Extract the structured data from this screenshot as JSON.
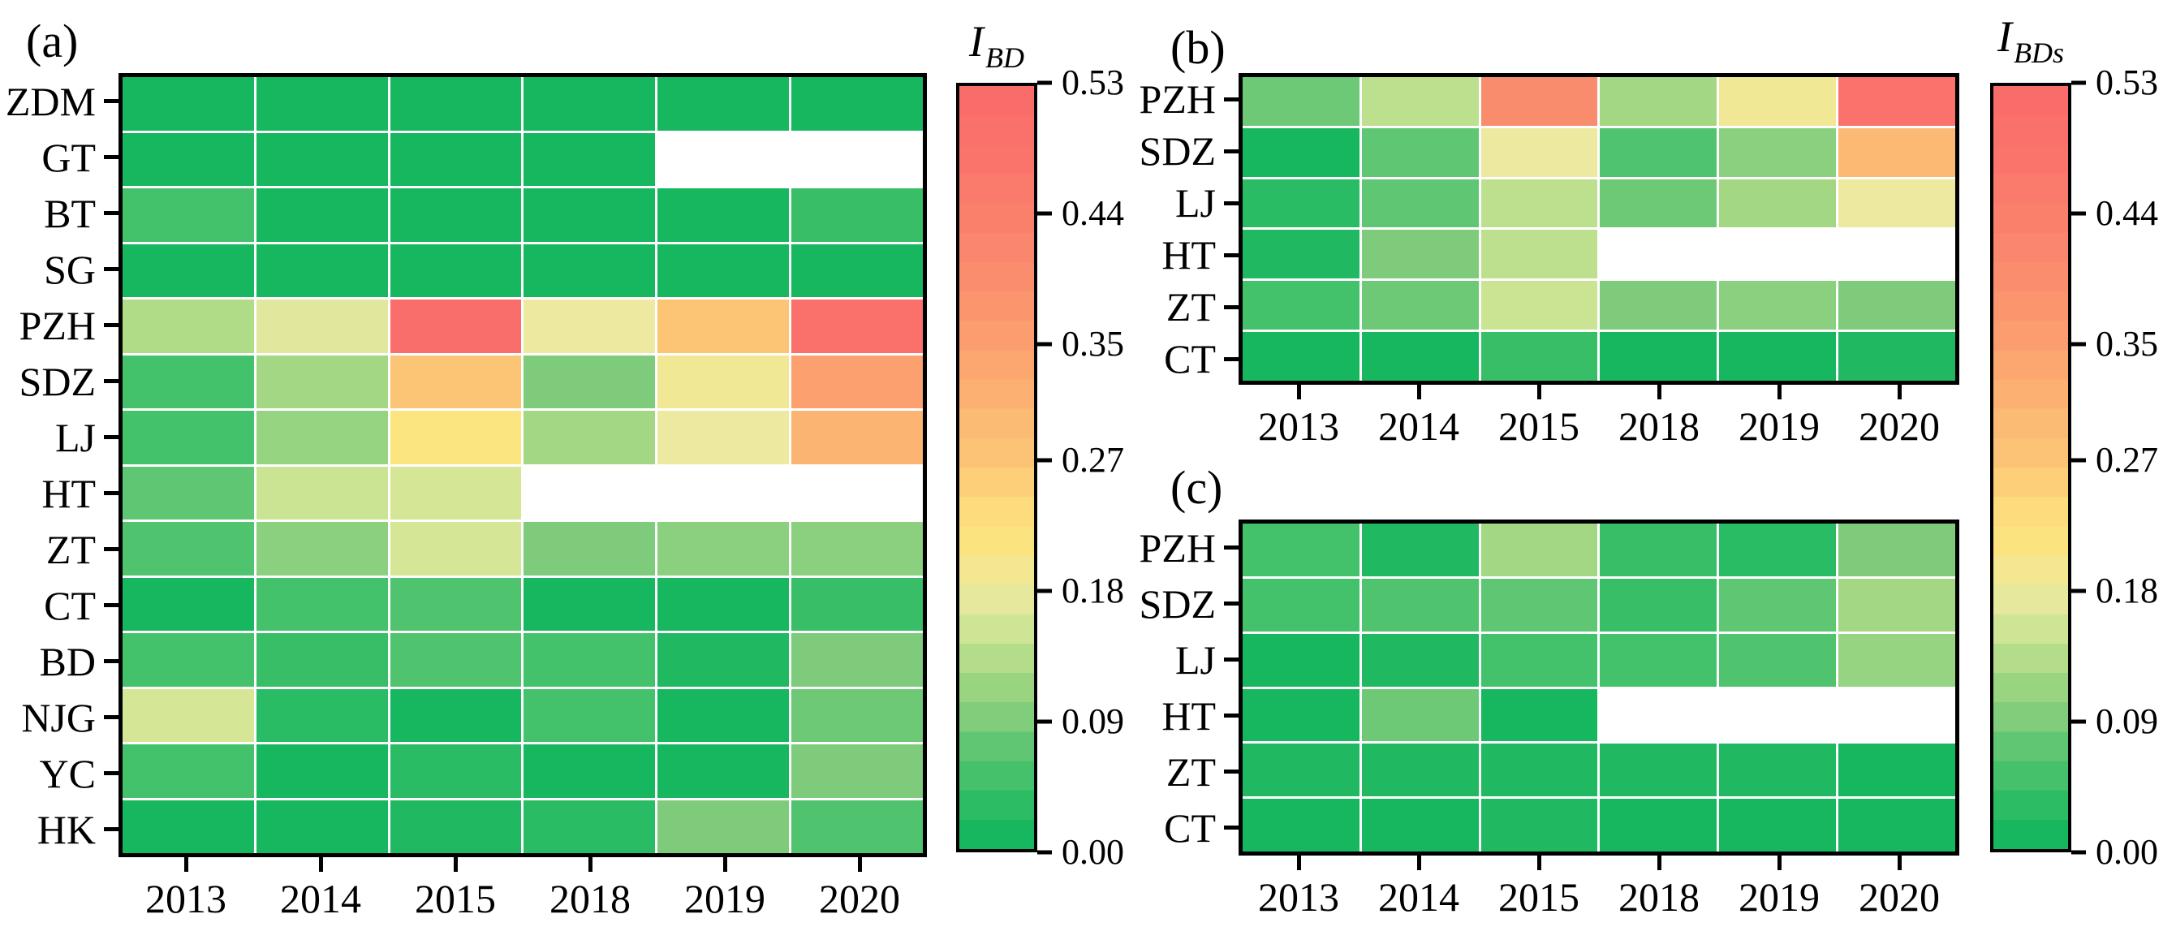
{
  "chart_data": [
    {
      "type": "heatmap",
      "panel_label": "(a)",
      "x": [
        "2013",
        "2014",
        "2015",
        "2018",
        "2019",
        "2020"
      ],
      "y": [
        "ZDM",
        "GT",
        "BT",
        "SG",
        "PZH",
        "SDZ",
        "LJ",
        "HT",
        "ZT",
        "CT",
        "BD",
        "NJG",
        "YC",
        "HK"
      ],
      "values": [
        [
          0.01,
          0.01,
          0.01,
          0.01,
          0.01,
          0.01
        ],
        [
          0.01,
          0.01,
          0.01,
          0.01,
          null,
          null
        ],
        [
          0.05,
          0.01,
          0.01,
          0.01,
          0.01,
          0.04
        ],
        [
          0.01,
          0.01,
          0.01,
          0.01,
          0.01,
          0.01
        ],
        [
          0.13,
          0.17,
          0.51,
          0.18,
          0.27,
          0.5
        ],
        [
          0.05,
          0.12,
          0.27,
          0.09,
          0.19,
          0.35
        ],
        [
          0.05,
          0.11,
          0.21,
          0.12,
          0.18,
          0.31
        ],
        [
          0.07,
          0.15,
          0.16,
          null,
          null,
          null
        ],
        [
          0.06,
          0.1,
          0.16,
          0.09,
          0.1,
          0.1
        ],
        [
          0.01,
          0.05,
          0.06,
          0.01,
          0.01,
          0.04
        ],
        [
          0.05,
          0.04,
          0.06,
          0.05,
          0.02,
          0.09
        ],
        [
          0.16,
          0.03,
          0.01,
          0.05,
          0.01,
          0.08
        ],
        [
          0.05,
          0.01,
          0.03,
          0.01,
          0.01,
          0.09
        ],
        [
          0.01,
          0.01,
          0.02,
          0.03,
          0.09,
          0.06
        ]
      ],
      "colorbar": {
        "label_main": "I",
        "label_sub": "BD",
        "ticks": [
          "0.53",
          "0.44",
          "0.35",
          "0.27",
          "0.18",
          "0.09",
          "0.00"
        ]
      }
    },
    {
      "type": "heatmap",
      "panel_label": "(b)",
      "x": [
        "2013",
        "2014",
        "2015",
        "2018",
        "2019",
        "2020"
      ],
      "y": [
        "PZH",
        "SDZ",
        "LJ",
        "HT",
        "ZT",
        "CT"
      ],
      "values": [
        [
          0.08,
          0.14,
          0.4,
          0.12,
          0.19,
          0.49
        ],
        [
          0.01,
          0.07,
          0.18,
          0.06,
          0.1,
          0.3
        ],
        [
          0.03,
          0.07,
          0.14,
          0.08,
          0.12,
          0.18
        ],
        [
          0.02,
          0.09,
          0.14,
          null,
          null,
          null
        ],
        [
          0.05,
          0.08,
          0.15,
          0.09,
          0.1,
          0.09
        ],
        [
          0.01,
          0.01,
          0.04,
          0.01,
          0.01,
          0.02
        ]
      ],
      "colorbar": {
        "label_main": "I",
        "label_sub": "BDs",
        "ticks": [
          "0.53",
          "0.44",
          "0.35",
          "0.27",
          "0.18",
          "0.09",
          "0.00"
        ]
      }
    },
    {
      "type": "heatmap",
      "panel_label": "(c)",
      "x": [
        "2013",
        "2014",
        "2015",
        "2018",
        "2019",
        "2020"
      ],
      "y": [
        "PZH",
        "SDZ",
        "LJ",
        "HT",
        "ZT",
        "CT"
      ],
      "values": [
        [
          0.05,
          0.02,
          0.12,
          0.04,
          0.03,
          0.09
        ],
        [
          0.05,
          0.06,
          0.07,
          0.04,
          0.07,
          0.12
        ],
        [
          0.01,
          0.02,
          0.05,
          0.05,
          0.06,
          0.11
        ],
        [
          0.01,
          0.08,
          0.01,
          null,
          null,
          null
        ],
        [
          0.02,
          0.02,
          0.02,
          0.02,
          0.02,
          0.01
        ],
        [
          0.01,
          0.01,
          0.02,
          0.01,
          0.01,
          0.01
        ]
      ]
    }
  ],
  "colormap": {
    "value_range": [
      0,
      0.53
    ],
    "missing_color": "#FFFFFF",
    "gridline_color": "#FFFFFF",
    "stops": [
      [
        0.0,
        "#0CB45C"
      ],
      [
        0.06,
        "#2CBC64"
      ],
      [
        0.12,
        "#55C470"
      ],
      [
        0.17,
        "#7ECC7B"
      ],
      [
        0.23,
        "#A5D884"
      ],
      [
        0.28,
        "#C8E492"
      ],
      [
        0.34,
        "#EDE9A0"
      ],
      [
        0.4,
        "#FBE57F"
      ],
      [
        0.45,
        "#FCDA7B"
      ],
      [
        0.51,
        "#FCC576"
      ],
      [
        0.57,
        "#FCB873"
      ],
      [
        0.66,
        "#FBA06E"
      ],
      [
        0.75,
        "#FA8D6E"
      ],
      [
        0.83,
        "#FA7F6C"
      ],
      [
        0.92,
        "#FA726B"
      ],
      [
        1.0,
        "#F96A6A"
      ]
    ]
  }
}
